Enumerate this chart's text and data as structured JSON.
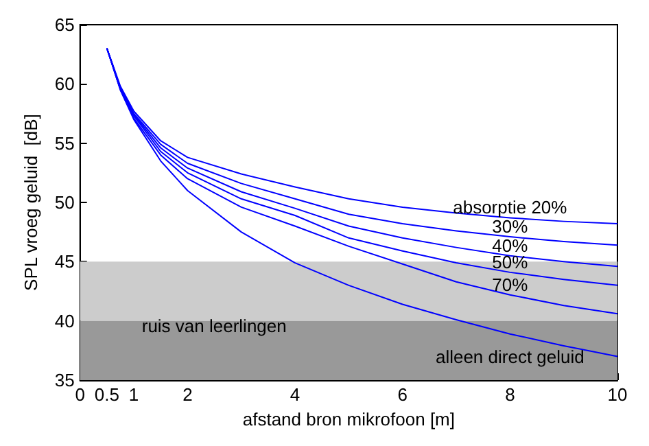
{
  "chart_data": {
    "type": "line",
    "xlabel": "afstand bron mikrofoon [m]",
    "ylabel": "SPL vroeg geluid  [dB]",
    "x": [
      0.5,
      0.75,
      1,
      1.5,
      2,
      3,
      4,
      5,
      6,
      7,
      8,
      9,
      10
    ],
    "series": [
      {
        "name": "absorptie 20%",
        "color": "#0000ff",
        "values": [
          63,
          59.8,
          57.7,
          55.2,
          53.8,
          52.4,
          51.3,
          50.3,
          49.6,
          49.1,
          48.7,
          48.4,
          48.2
        ]
      },
      {
        "name": "30%",
        "color": "#0000ff",
        "values": [
          63,
          59.7,
          57.5,
          54.9,
          53.3,
          51.6,
          50.3,
          49.0,
          48.2,
          47.6,
          47.1,
          46.7,
          46.4
        ]
      },
      {
        "name": "40%",
        "color": "#0000ff",
        "values": [
          63,
          59.6,
          57.4,
          54.6,
          52.9,
          50.9,
          49.5,
          48.0,
          47.0,
          46.2,
          45.5,
          45.0,
          44.6
        ]
      },
      {
        "name": "50%",
        "color": "#0000ff",
        "values": [
          63,
          59.6,
          57.3,
          54.3,
          52.5,
          50.3,
          48.9,
          47.0,
          45.9,
          44.9,
          44.1,
          43.5,
          43.0
        ]
      },
      {
        "name": "70%",
        "color": "#0000ff",
        "values": [
          63,
          59.5,
          57.1,
          54.0,
          52.0,
          49.6,
          48.0,
          46.3,
          44.8,
          43.3,
          42.2,
          41.3,
          40.6
        ]
      },
      {
        "name": "alleen direct geluid",
        "color": "#0000ff",
        "values": [
          63,
          59.5,
          57.0,
          53.5,
          51.0,
          47.5,
          44.9,
          43.0,
          41.4,
          40.1,
          38.9,
          37.9,
          37.0
        ]
      }
    ],
    "xlim": [
      0,
      10
    ],
    "xticks": [
      0,
      0.5,
      1,
      2,
      4,
      6,
      8,
      10
    ],
    "ylim": [
      35,
      65
    ],
    "yticks": [
      35,
      40,
      45,
      50,
      55,
      60,
      65
    ],
    "bands": [
      {
        "axis": "y",
        "from": 40,
        "to": 45,
        "color": "#cccccc"
      },
      {
        "axis": "y",
        "from": 35,
        "to": 40,
        "color": "#999999",
        "label": "ruis van leerlingen"
      }
    ],
    "grid": false,
    "legend": false,
    "marker": "none",
    "line_style": "solid"
  }
}
